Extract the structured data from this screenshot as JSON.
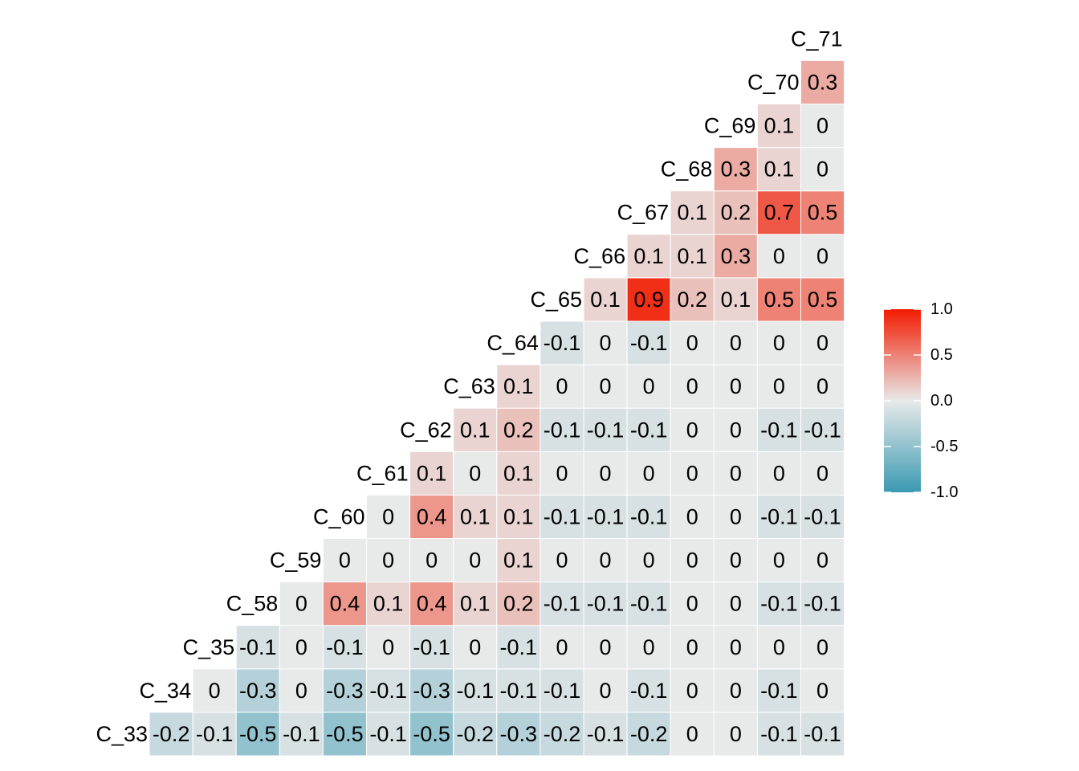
{
  "chart_data": {
    "type": "heatmap",
    "variables": [
      "C_33",
      "C_34",
      "C_35",
      "C_58",
      "C_59",
      "C_60",
      "C_61",
      "C_62",
      "C_63",
      "C_64",
      "C_65",
      "C_66",
      "C_67",
      "C_68",
      "C_69",
      "C_70",
      "C_71"
    ],
    "rows": [
      {
        "label": "C_33",
        "values": [
          -0.2,
          -0.1,
          -0.5,
          -0.1,
          -0.5,
          -0.1,
          -0.5,
          -0.2,
          -0.3,
          -0.2,
          -0.1,
          -0.2,
          0,
          0,
          -0.1,
          -0.1
        ]
      },
      {
        "label": "C_34",
        "values": [
          0,
          -0.3,
          0,
          -0.3,
          -0.1,
          -0.3,
          -0.1,
          -0.1,
          -0.1,
          0,
          -0.1,
          0,
          0,
          -0.1,
          0
        ]
      },
      {
        "label": "C_35",
        "values": [
          -0.1,
          0,
          -0.1,
          0,
          -0.1,
          0,
          -0.1,
          0,
          0,
          0,
          0,
          0,
          0,
          0
        ]
      },
      {
        "label": "C_58",
        "values": [
          0,
          0.4,
          0.1,
          0.4,
          0.1,
          0.2,
          -0.1,
          -0.1,
          -0.1,
          0,
          0,
          -0.1,
          -0.1
        ]
      },
      {
        "label": "C_59",
        "values": [
          0,
          0,
          0,
          0,
          0.1,
          0,
          0,
          0,
          0,
          0,
          0,
          0
        ]
      },
      {
        "label": "C_60",
        "values": [
          0,
          0.4,
          0.1,
          0.1,
          -0.1,
          -0.1,
          -0.1,
          0,
          0,
          -0.1,
          -0.1
        ]
      },
      {
        "label": "C_61",
        "values": [
          0.1,
          0,
          0.1,
          0,
          0,
          0,
          0,
          0,
          0,
          0
        ]
      },
      {
        "label": "C_62",
        "values": [
          0.1,
          0.2,
          -0.1,
          -0.1,
          -0.1,
          0,
          0,
          -0.1,
          -0.1
        ]
      },
      {
        "label": "C_63",
        "values": [
          0.1,
          0,
          0,
          0,
          0,
          0,
          0,
          0
        ]
      },
      {
        "label": "C_64",
        "values": [
          -0.1,
          0,
          -0.1,
          0,
          0,
          0,
          0
        ]
      },
      {
        "label": "C_65",
        "values": [
          0.1,
          0.9,
          0.2,
          0.1,
          0.5,
          0.5
        ]
      },
      {
        "label": "C_66",
        "values": [
          0.1,
          0.1,
          0.3,
          0,
          0
        ]
      },
      {
        "label": "C_67",
        "values": [
          0.1,
          0.2,
          0.7,
          0.5
        ]
      },
      {
        "label": "C_68",
        "values": [
          0.3,
          0.1,
          0
        ]
      },
      {
        "label": "C_69",
        "values": [
          0.1,
          0
        ]
      },
      {
        "label": "C_70",
        "values": [
          0.3
        ]
      },
      {
        "label": "C_71",
        "values": []
      }
    ],
    "color_scale": {
      "low": "#3A9AB2",
      "mid": "#E8E9E9",
      "high": "#F21A00",
      "range": [
        -1,
        1
      ]
    },
    "legend": {
      "position": "right",
      "ticks": [
        "1.0",
        "0.5",
        "0.0",
        "-0.5",
        "-1.0"
      ]
    }
  }
}
